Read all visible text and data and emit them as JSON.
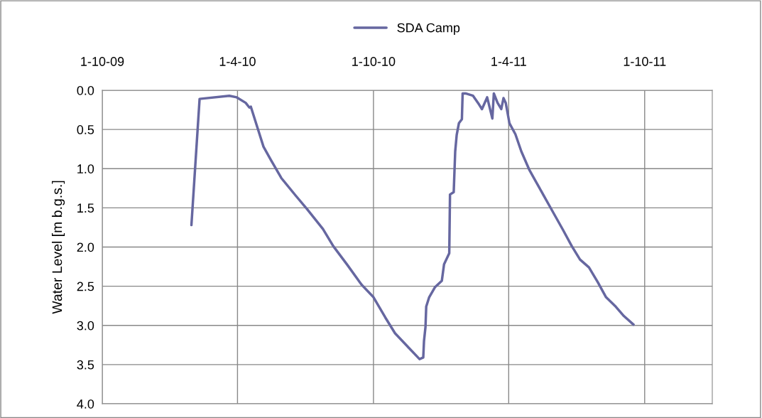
{
  "chart_data": {
    "type": "line",
    "ylabel": "Water Level [m b.g.s.]",
    "legend": "top",
    "xlim": [
      "2009-10-01",
      "2011-12-31"
    ],
    "xticks": [
      {
        "value": "2009-10-01",
        "label": "1-10-09"
      },
      {
        "value": "2010-04-01",
        "label": "1-4-10"
      },
      {
        "value": "2010-10-01",
        "label": "1-10-10"
      },
      {
        "value": "2011-04-01",
        "label": "1-4-11"
      },
      {
        "value": "2011-10-01",
        "label": "1-10-11"
      }
    ],
    "ylim": [
      4.0,
      0.0
    ],
    "yticks": [
      {
        "value": 0,
        "label": "0.0"
      },
      {
        "value": 0.5,
        "label": "0.5"
      },
      {
        "value": 1,
        "label": "1.0"
      },
      {
        "value": 1.5,
        "label": "1.5"
      },
      {
        "value": 2,
        "label": "2.0"
      },
      {
        "value": 2.5,
        "label": "2.5"
      },
      {
        "value": 3,
        "label": "3.0"
      },
      {
        "value": 3.5,
        "label": "3.5"
      },
      {
        "value": 4,
        "label": "4.0"
      }
    ],
    "grid": true,
    "marker": "none",
    "line_style": "solid",
    "series": [
      {
        "name": "SDA Camp",
        "color": "#6667a0",
        "x": [
          "2010-01-29",
          "2010-02-09",
          "2010-03-21",
          "2010-03-31",
          "2010-04-12",
          "2010-04-17",
          "2010-04-19",
          "2010-04-28",
          "2010-05-06",
          "2010-05-16",
          "2010-05-30",
          "2010-06-18",
          "2010-07-04",
          "2010-07-25",
          "2010-08-08",
          "2010-08-27",
          "2010-09-15",
          "2010-10-01",
          "2010-10-17",
          "2010-10-30",
          "2010-11-18",
          "2010-12-02",
          "2010-12-07",
          "2010-12-08",
          "2010-12-10",
          "2010-12-11",
          "2010-12-15",
          "2010-12-23",
          "2011-01-01",
          "2011-01-04",
          "2011-01-11",
          "2011-01-12",
          "2011-01-17",
          "2011-01-19",
          "2011-01-21",
          "2011-01-24",
          "2011-01-28",
          "2011-01-29",
          "2011-02-02",
          "2011-02-12",
          "2011-02-20",
          "2011-02-24",
          "2011-03-03",
          "2011-03-10",
          "2011-03-12",
          "2011-03-17",
          "2011-03-22",
          "2011-03-25",
          "2011-03-28",
          "2011-04-02",
          "2011-04-10",
          "2011-04-18",
          "2011-04-29",
          "2011-05-12",
          "2011-05-28",
          "2011-06-13",
          "2011-06-25",
          "2011-07-06",
          "2011-07-18",
          "2011-07-30",
          "2011-08-10",
          "2011-08-22",
          "2011-09-03",
          "2011-09-16"
        ],
        "values": [
          1.72,
          0.11,
          0.07,
          0.09,
          0.16,
          0.22,
          0.21,
          0.48,
          0.72,
          0.89,
          1.12,
          1.34,
          1.52,
          1.77,
          1.99,
          2.23,
          2.48,
          2.64,
          2.9,
          3.1,
          3.29,
          3.43,
          3.41,
          3.2,
          3.02,
          2.76,
          2.64,
          2.51,
          2.43,
          2.22,
          2.08,
          1.33,
          1.3,
          0.78,
          0.57,
          0.42,
          0.37,
          0.04,
          0.04,
          0.07,
          0.18,
          0.24,
          0.09,
          0.36,
          0.04,
          0.16,
          0.24,
          0.1,
          0.16,
          0.42,
          0.56,
          0.78,
          1.02,
          1.24,
          1.51,
          1.78,
          1.99,
          2.16,
          2.26,
          2.45,
          2.64,
          2.75,
          2.88,
          2.99
        ]
      }
    ]
  }
}
